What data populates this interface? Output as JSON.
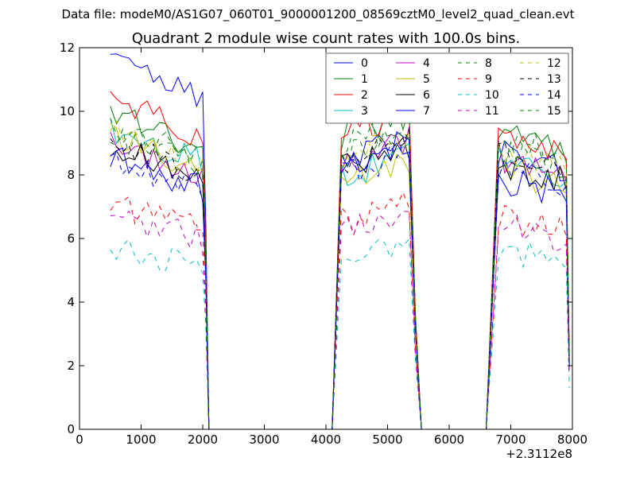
{
  "figure": {
    "suptitle": "Data file: modeM0/AS1G07_060T01_9000001200_08569cztM0_level2_quad_clean.evt"
  },
  "chart_data": {
    "type": "line",
    "title": "Quadrant 2 module wise count rates with 100.0s bins.",
    "xlabel": "",
    "ylabel": "",
    "x_offset_label": "+2.3112e8",
    "xlim": [
      0,
      8000
    ],
    "ylim": [
      0,
      12
    ],
    "xticks": [
      0,
      1000,
      2000,
      3000,
      4000,
      5000,
      6000,
      7000,
      8000
    ],
    "yticks": [
      0,
      2,
      4,
      6,
      8,
      10,
      12
    ],
    "grid": false,
    "legend": {
      "placement": "top-right",
      "columns": 4
    },
    "segments": [
      {
        "start": 500,
        "end": 2000,
        "fall_end": 2100
      },
      {
        "rise_start": 4100,
        "start": 4250,
        "end": 5350,
        "fall_end": 5550
      },
      {
        "rise_start": 6600,
        "start": 6800,
        "end": 7900,
        "fall_end": 7950
      }
    ],
    "series": [
      {
        "name": "0",
        "color": "#0000ff",
        "dash": "solid",
        "levels": [
          11.7,
          8.4,
          8.7
        ],
        "end_level": 2.0
      },
      {
        "name": "1",
        "color": "#008000",
        "dash": "solid",
        "levels": [
          10.0,
          9.2,
          9.3
        ],
        "end_level": 2.3
      },
      {
        "name": "2",
        "color": "#ff0000",
        "dash": "solid",
        "levels": [
          10.4,
          9.2,
          9.4
        ],
        "end_level": 2.4
      },
      {
        "name": "3",
        "color": "#00bfbf",
        "dash": "solid",
        "levels": [
          9.5,
          8.0,
          8.6
        ],
        "end_level": 2.0
      },
      {
        "name": "4",
        "color": "#bf00bf",
        "dash": "solid",
        "levels": [
          9.0,
          8.4,
          8.6
        ],
        "end_level": 2.2
      },
      {
        "name": "5",
        "color": "#bfbf00",
        "dash": "solid",
        "levels": [
          9.2,
          7.9,
          8.2
        ],
        "end_level": 1.9
      },
      {
        "name": "6",
        "color": "#000000",
        "dash": "solid",
        "levels": [
          9.0,
          8.2,
          8.3
        ],
        "end_level": 2.3
      },
      {
        "name": "7",
        "color": "#0000ff",
        "dash": "solid",
        "levels": [
          8.6,
          8.3,
          7.9
        ],
        "end_level": 2.0
      },
      {
        "name": "8",
        "color": "#008000",
        "dash": "dashed",
        "levels": [
          9.3,
          8.6,
          8.7
        ],
        "end_level": 2.1
      },
      {
        "name": "9",
        "color": "#ff0000",
        "dash": "dashed",
        "levels": [
          7.1,
          6.5,
          6.7
        ],
        "end_level": 1.9
      },
      {
        "name": "10",
        "color": "#00bfbf",
        "dash": "dashed",
        "levels": [
          5.8,
          5.5,
          5.6
        ],
        "end_level": 1.3
      },
      {
        "name": "11",
        "color": "#bf00bf",
        "dash": "dashed",
        "levels": [
          6.8,
          6.2,
          6.4
        ],
        "end_level": 1.7
      },
      {
        "name": "12",
        "color": "#bfbf00",
        "dash": "dashed",
        "levels": [
          9.4,
          8.5,
          8.8
        ],
        "end_level": 2.0
      },
      {
        "name": "13",
        "color": "#000000",
        "dash": "dashed",
        "levels": [
          9.1,
          8.4,
          8.6
        ],
        "end_level": 2.1
      },
      {
        "name": "14",
        "color": "#0000ff",
        "dash": "dashed",
        "levels": [
          8.5,
          8.1,
          8.3
        ],
        "end_level": 1.9
      },
      {
        "name": "15",
        "color": "#008000",
        "dash": "dashed",
        "levels": [
          9.6,
          8.9,
          9.1
        ],
        "end_level": 2.2
      }
    ]
  }
}
